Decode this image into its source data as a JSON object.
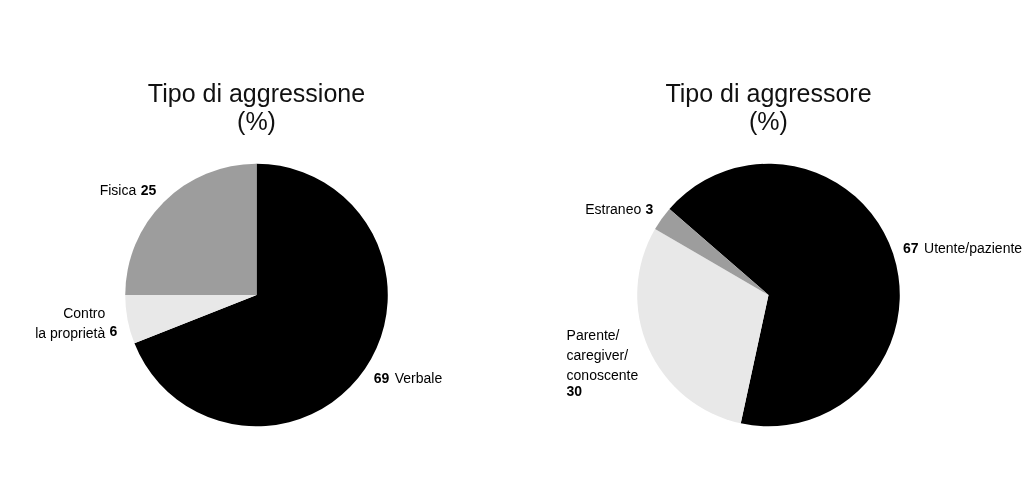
{
  "chart_data": [
    {
      "type": "pie",
      "title": "Tipo di aggressione\n(%)",
      "categories": [
        "Verbale",
        "Contro\nla proprietà",
        "Fisica"
      ],
      "values": [
        69,
        6,
        25
      ],
      "colors": [
        "#000000",
        "#e8e8e8",
        "#9d9d9d"
      ],
      "data_labels": true
    },
    {
      "type": "pie",
      "title": "Tipo di aggressore\n(%)",
      "categories": [
        "Utente/paziente",
        "Parente/\ncaregiver/\nconoscente",
        "Estraneo"
      ],
      "values": [
        67,
        30,
        3
      ],
      "colors": [
        "#000000",
        "#e8e8e8",
        "#9d9d9d"
      ],
      "data_labels": true
    }
  ]
}
